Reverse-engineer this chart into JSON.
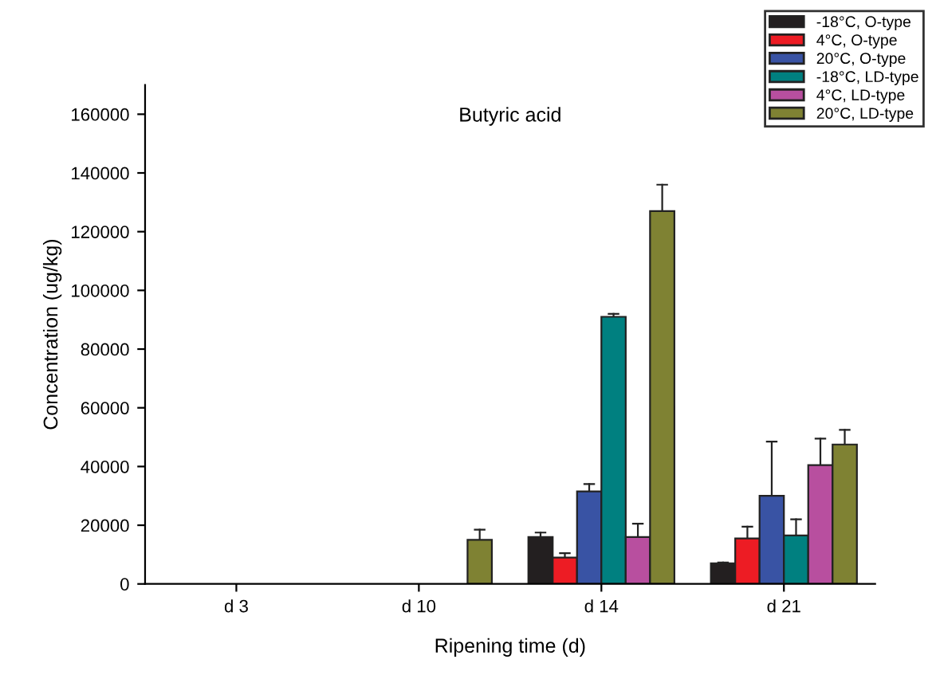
{
  "chart_data": {
    "type": "bar",
    "title": "Butyric acid",
    "xlabel": "Ripening time (d)",
    "ylabel": "Concentration (ug/kg)",
    "categories": [
      "d 3",
      "d 10",
      "d 14",
      "d 21"
    ],
    "series": [
      {
        "name": "-18°C, O-type",
        "color": "#231f20",
        "values": [
          null,
          null,
          16000,
          7000
        ],
        "errors": [
          null,
          null,
          [
            16000,
            17500
          ],
          [
            7000,
            7300
          ]
        ]
      },
      {
        "name": "4°C, O-type",
        "color": "#ed1c24",
        "values": [
          null,
          null,
          9000,
          15500
        ],
        "errors": [
          null,
          null,
          [
            9000,
            10500
          ],
          [
            15500,
            19500
          ]
        ]
      },
      {
        "name": "20°C, O-type",
        "color": "#3953a4",
        "values": [
          null,
          null,
          31500,
          30000
        ],
        "errors": [
          null,
          null,
          [
            31500,
            34000
          ],
          [
            30000,
            48500
          ]
        ]
      },
      {
        "name": "-18°C, LD-type",
        "color": "#008080",
        "values": [
          null,
          null,
          91000,
          16500
        ],
        "errors": [
          null,
          null,
          [
            91000,
            92000
          ],
          [
            16500,
            22000
          ]
        ]
      },
      {
        "name": "4°C, LD-type",
        "color": "#b84f9f",
        "values": [
          null,
          null,
          16000,
          40500
        ],
        "errors": [
          null,
          null,
          [
            16000,
            20500
          ],
          [
            40500,
            49500
          ]
        ]
      },
      {
        "name": "20°C, LD-type",
        "color": "#7f8233",
        "values": [
          null,
          15000,
          127000,
          47500
        ],
        "errors": [
          null,
          [
            15000,
            18500
          ],
          [
            127000,
            136000
          ],
          [
            47500,
            52500
          ]
        ]
      }
    ],
    "ylim": [
      0,
      170000
    ],
    "yticks": [
      0,
      20000,
      40000,
      60000,
      80000,
      100000,
      120000,
      140000,
      160000
    ],
    "grid": false,
    "legend": "top right"
  }
}
